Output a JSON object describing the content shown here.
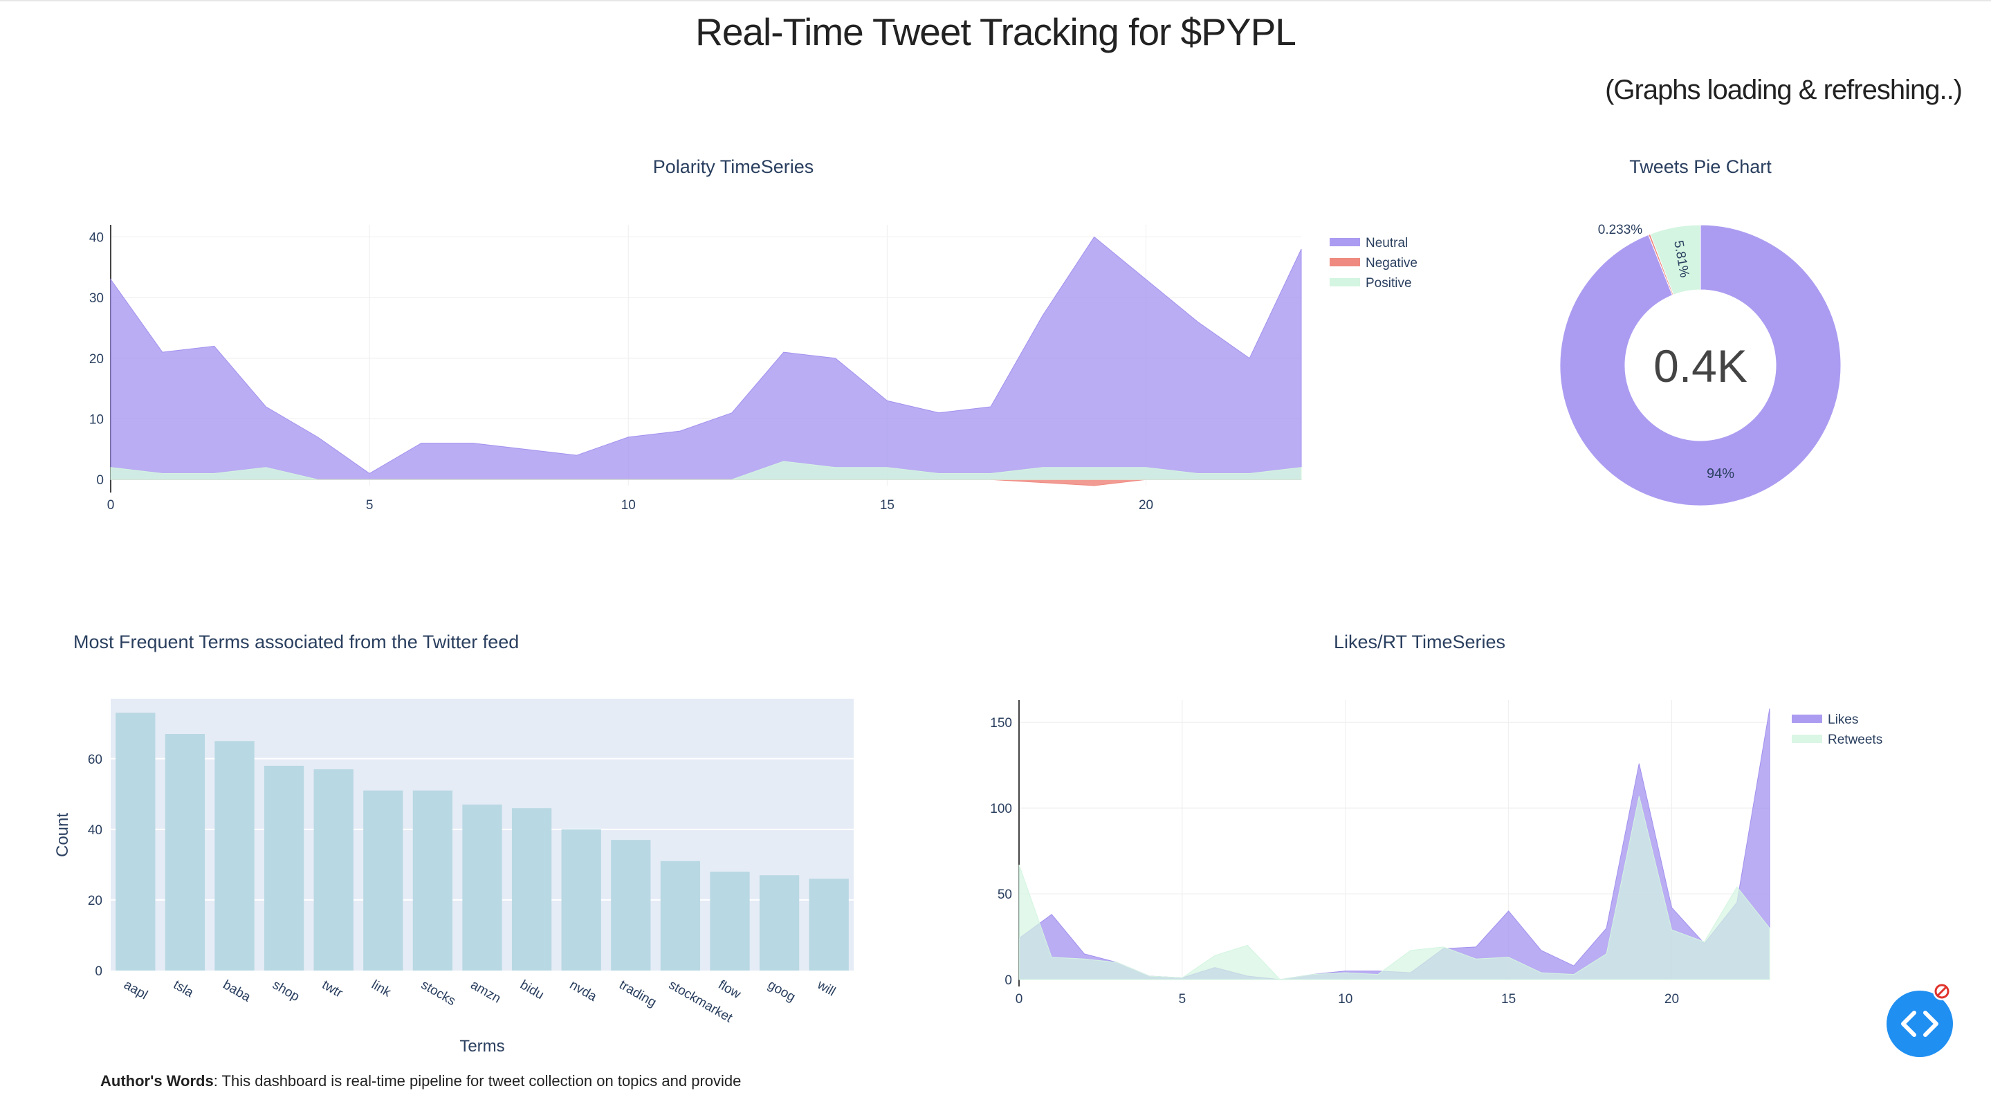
{
  "header": {
    "title": "Real-Time Tweet Tracking for $PYPL",
    "status": "(Graphs loading & refreshing..)"
  },
  "colors": {
    "neutral": "#a391ef",
    "negative": "#ef8a80",
    "positive": "#d4f5e1",
    "likes": "#a391ef",
    "retweets": "#d4f5e1",
    "bars": "#b8d8e3",
    "bar_plot_bg": "#e5ecf6"
  },
  "footer": {
    "author_label": "Author's Words",
    "author_text": ": This dashboard is real-time pipeline for tweet collection on topics and provide"
  },
  "chart_data": [
    {
      "id": "polarity",
      "type": "area",
      "title": "Polarity TimeSeries",
      "x": [
        0,
        1,
        2,
        3,
        4,
        5,
        6,
        7,
        8,
        9,
        10,
        11,
        12,
        13,
        14,
        15,
        16,
        17,
        18,
        19,
        20,
        21,
        22,
        23
      ],
      "xticks": [
        0,
        5,
        10,
        15,
        20
      ],
      "yticks": [
        0,
        10,
        20,
        30,
        40
      ],
      "xlim": [
        0,
        23
      ],
      "ylim": [
        -1,
        42
      ],
      "grid": true,
      "legend_position": "top-right",
      "series": [
        {
          "name": "Neutral",
          "values": [
            33,
            21,
            22,
            12,
            7,
            1,
            6,
            6,
            5,
            4,
            7,
            8,
            11,
            21,
            20,
            13,
            11,
            12,
            27,
            40,
            33,
            26,
            20,
            38
          ]
        },
        {
          "name": "Negative",
          "values": [
            0,
            0,
            0,
            0,
            0,
            0,
            0,
            0,
            0,
            0,
            0,
            0,
            0,
            0,
            0,
            0,
            0,
            0,
            -0.5,
            -1,
            0,
            0,
            0,
            0
          ]
        },
        {
          "name": "Positive",
          "values": [
            2,
            1,
            1,
            2,
            0,
            0,
            0,
            0,
            0,
            0,
            0,
            0,
            0,
            3,
            2,
            2,
            1,
            1,
            2,
            2,
            2,
            1,
            1,
            2
          ]
        }
      ]
    },
    {
      "id": "pie",
      "type": "pie",
      "title": "Tweets Pie Chart",
      "center_text": "0.4K",
      "slices": [
        {
          "name": "Neutral",
          "value": 93.957,
          "label": "94%"
        },
        {
          "name": "Negative",
          "value": 0.233,
          "label": "0.233%"
        },
        {
          "name": "Positive",
          "value": 5.81,
          "label": "5.81%"
        }
      ]
    },
    {
      "id": "terms",
      "type": "bar",
      "title": "Most Frequent Terms associated from the Twitter feed",
      "xlabel": "Terms",
      "ylabel": "Count",
      "categories": [
        "aapl",
        "tsla",
        "baba",
        "shop",
        "twtr",
        "link",
        "stocks",
        "amzn",
        "bidu",
        "nvda",
        "trading",
        "stockmarket",
        "flow",
        "goog",
        "will"
      ],
      "values": [
        73,
        67,
        65,
        58,
        57,
        51,
        51,
        47,
        46,
        40,
        37,
        31,
        28,
        27,
        26
      ],
      "yticks": [
        0,
        20,
        40,
        60
      ],
      "ylim": [
        0,
        77
      ]
    },
    {
      "id": "likes",
      "type": "area",
      "title": "Likes/RT TimeSeries",
      "x": [
        0,
        1,
        2,
        3,
        4,
        5,
        6,
        7,
        8,
        9,
        10,
        11,
        12,
        13,
        14,
        15,
        16,
        17,
        18,
        19,
        20,
        21,
        22,
        23
      ],
      "xticks": [
        0,
        5,
        10,
        15,
        20
      ],
      "yticks": [
        0,
        50,
        100,
        150
      ],
      "xlim": [
        0,
        23
      ],
      "ylim": [
        0,
        163
      ],
      "grid": true,
      "legend_position": "top-right",
      "series": [
        {
          "name": "Likes",
          "values": [
            24,
            38,
            15,
            10,
            2,
            1,
            7,
            2,
            0,
            3,
            5,
            5,
            4,
            18,
            19,
            40,
            17,
            8,
            30,
            126,
            42,
            21,
            45,
            158
          ]
        },
        {
          "name": "Retweets",
          "values": [
            67,
            13,
            12,
            10,
            2,
            1,
            14,
            20,
            0,
            3,
            4,
            3,
            17,
            19,
            12,
            13,
            4,
            3,
            15,
            107,
            29,
            22,
            54,
            30
          ]
        }
      ]
    }
  ]
}
